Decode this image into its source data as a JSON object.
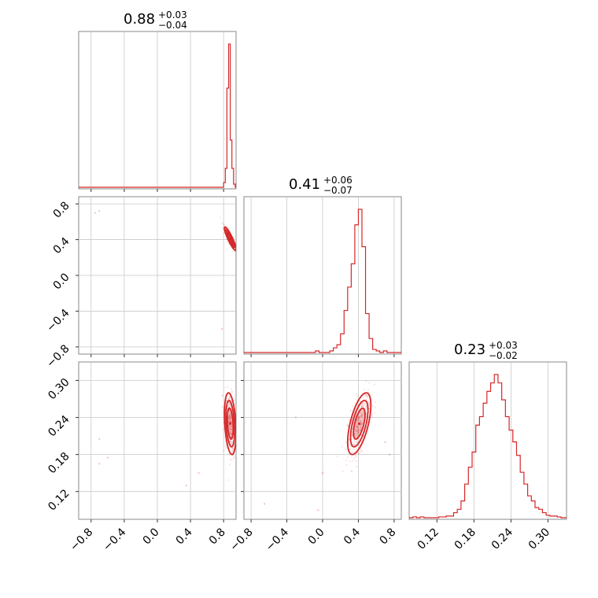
{
  "chart_data": {
    "type": "corner",
    "color": "#d62728",
    "grid": true,
    "parameters": [
      {
        "median": 0.88,
        "err_plus": 0.03,
        "err_minus": 0.04,
        "title": "0.88",
        "title_plus": "+0.03",
        "title_minus": "−0.04",
        "range": [
          -0.95,
          0.95
        ],
        "ticks": [
          -0.8,
          -0.4,
          0.0,
          0.4,
          0.8
        ],
        "tick_labels": [
          "−0.8",
          "−0.4",
          "0.0",
          "0.4",
          "0.8"
        ]
      },
      {
        "median": 0.41,
        "err_plus": 0.06,
        "err_minus": 0.07,
        "title": "0.41",
        "title_plus": "+0.06",
        "title_minus": "−0.07",
        "range": [
          -0.88,
          0.88
        ],
        "ticks": [
          -0.8,
          -0.4,
          0.0,
          0.4,
          0.8
        ],
        "tick_labels": [
          "−0.8",
          "−0.4",
          "0.0",
          "0.4",
          "0.8"
        ]
      },
      {
        "median": 0.23,
        "err_plus": 0.03,
        "err_minus": 0.02,
        "title": "0.23",
        "title_plus": "+0.03",
        "title_minus": "−0.02",
        "range": [
          0.075,
          0.33
        ],
        "ticks": [
          0.12,
          0.18,
          0.24,
          0.3
        ],
        "tick_labels": [
          "0.12",
          "0.18",
          "0.24",
          "0.30"
        ]
      }
    ],
    "histograms": [
      {
        "param": 0,
        "bin_edges": [
          0.8,
          0.82,
          0.84,
          0.86,
          0.88,
          0.9,
          0.92,
          0.94
        ],
        "counts": [
          0.03,
          0.12,
          0.63,
          0.91,
          0.3,
          0.12,
          0.02
        ]
      },
      {
        "param": 1,
        "bin_edges": [
          -0.16,
          -0.12,
          -0.08,
          -0.04,
          0.0,
          0.04,
          0.08,
          0.12,
          0.16,
          0.2,
          0.24,
          0.28,
          0.32,
          0.36,
          0.4,
          0.44,
          0.48,
          0.52,
          0.56,
          0.6,
          0.64,
          0.68,
          0.72,
          0.76,
          0.8
        ],
        "counts": [
          0.0,
          0.0,
          0.01,
          0.0,
          0.0,
          0.0,
          0.01,
          0.03,
          0.05,
          0.12,
          0.27,
          0.42,
          0.57,
          0.82,
          0.92,
          0.68,
          0.25,
          0.09,
          0.02,
          0.01,
          0.0,
          0.01,
          0.0,
          0.0
        ]
      },
      {
        "param": 2,
        "bin_edges": [
          0.075,
          0.081,
          0.087,
          0.093,
          0.099,
          0.105,
          0.111,
          0.117,
          0.123,
          0.129,
          0.135,
          0.141,
          0.147,
          0.153,
          0.159,
          0.165,
          0.171,
          0.177,
          0.183,
          0.189,
          0.195,
          0.201,
          0.207,
          0.213,
          0.219,
          0.225,
          0.231,
          0.237,
          0.243,
          0.249,
          0.255,
          0.261,
          0.267,
          0.273,
          0.279,
          0.285,
          0.291,
          0.297,
          0.303,
          0.309,
          0.315,
          0.321,
          0.327
        ],
        "counts": [
          0.0,
          0.005,
          0.0,
          0.005,
          0.0,
          0.0,
          0.0,
          0.0,
          0.005,
          0.005,
          0.01,
          0.01,
          0.03,
          0.05,
          0.1,
          0.2,
          0.3,
          0.39,
          0.55,
          0.6,
          0.68,
          0.75,
          0.8,
          0.85,
          0.8,
          0.7,
          0.6,
          0.52,
          0.45,
          0.37,
          0.27,
          0.2,
          0.13,
          0.1,
          0.06,
          0.05,
          0.03,
          0.015,
          0.01,
          0.01,
          0.005,
          0.0
        ]
      }
    ],
    "joint_2d": [
      {
        "x_param": 0,
        "y_param": 1,
        "center": [
          0.88,
          0.41
        ],
        "sd": [
          0.035,
          0.065
        ],
        "rho": -0.9,
        "outliers": [
          [
            -0.7,
            0.72
          ],
          [
            -0.75,
            0.7
          ],
          [
            0.78,
            -0.6
          ]
        ]
      },
      {
        "x_param": 0,
        "y_param": 2,
        "center": [
          0.88,
          0.23
        ],
        "sd": [
          0.035,
          0.025
        ],
        "rho": -0.3,
        "outliers": [
          [
            -0.7,
            0.205
          ],
          [
            -0.6,
            0.175
          ],
          [
            -0.7,
            0.165
          ],
          [
            0.35,
            0.13
          ],
          [
            0.5,
            0.15
          ]
        ]
      },
      {
        "x_param": 1,
        "y_param": 2,
        "center": [
          0.41,
          0.23
        ],
        "sd": [
          0.065,
          0.025
        ],
        "rho": 0.6,
        "outliers": [
          [
            -0.65,
            0.1
          ],
          [
            -0.3,
            0.24
          ],
          [
            0.0,
            0.15
          ],
          [
            -0.05,
            0.09
          ],
          [
            0.7,
            0.2
          ],
          [
            0.75,
            0.18
          ]
        ]
      }
    ]
  }
}
